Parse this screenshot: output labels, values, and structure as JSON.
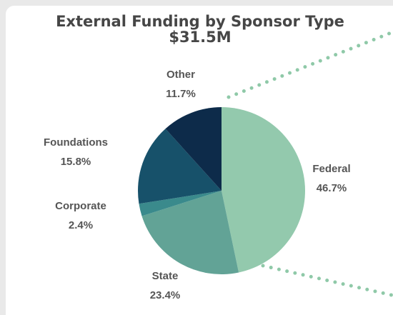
{
  "chart_data": {
    "type": "pie",
    "title": "External Funding by Sponsor Type",
    "subtitle": "$31.5M",
    "categories": [
      "Federal",
      "State",
      "Corporate",
      "Foundations",
      "Other"
    ],
    "values": [
      46.7,
      23.4,
      2.4,
      15.8,
      11.7
    ],
    "value_labels": [
      "46.7%",
      "23.4%",
      "2.4%",
      "15.8%",
      "11.7%"
    ],
    "colors": [
      "#93c9ad",
      "#62a396",
      "#3a8a8c",
      "#17516a",
      "#0d2b4a"
    ]
  }
}
